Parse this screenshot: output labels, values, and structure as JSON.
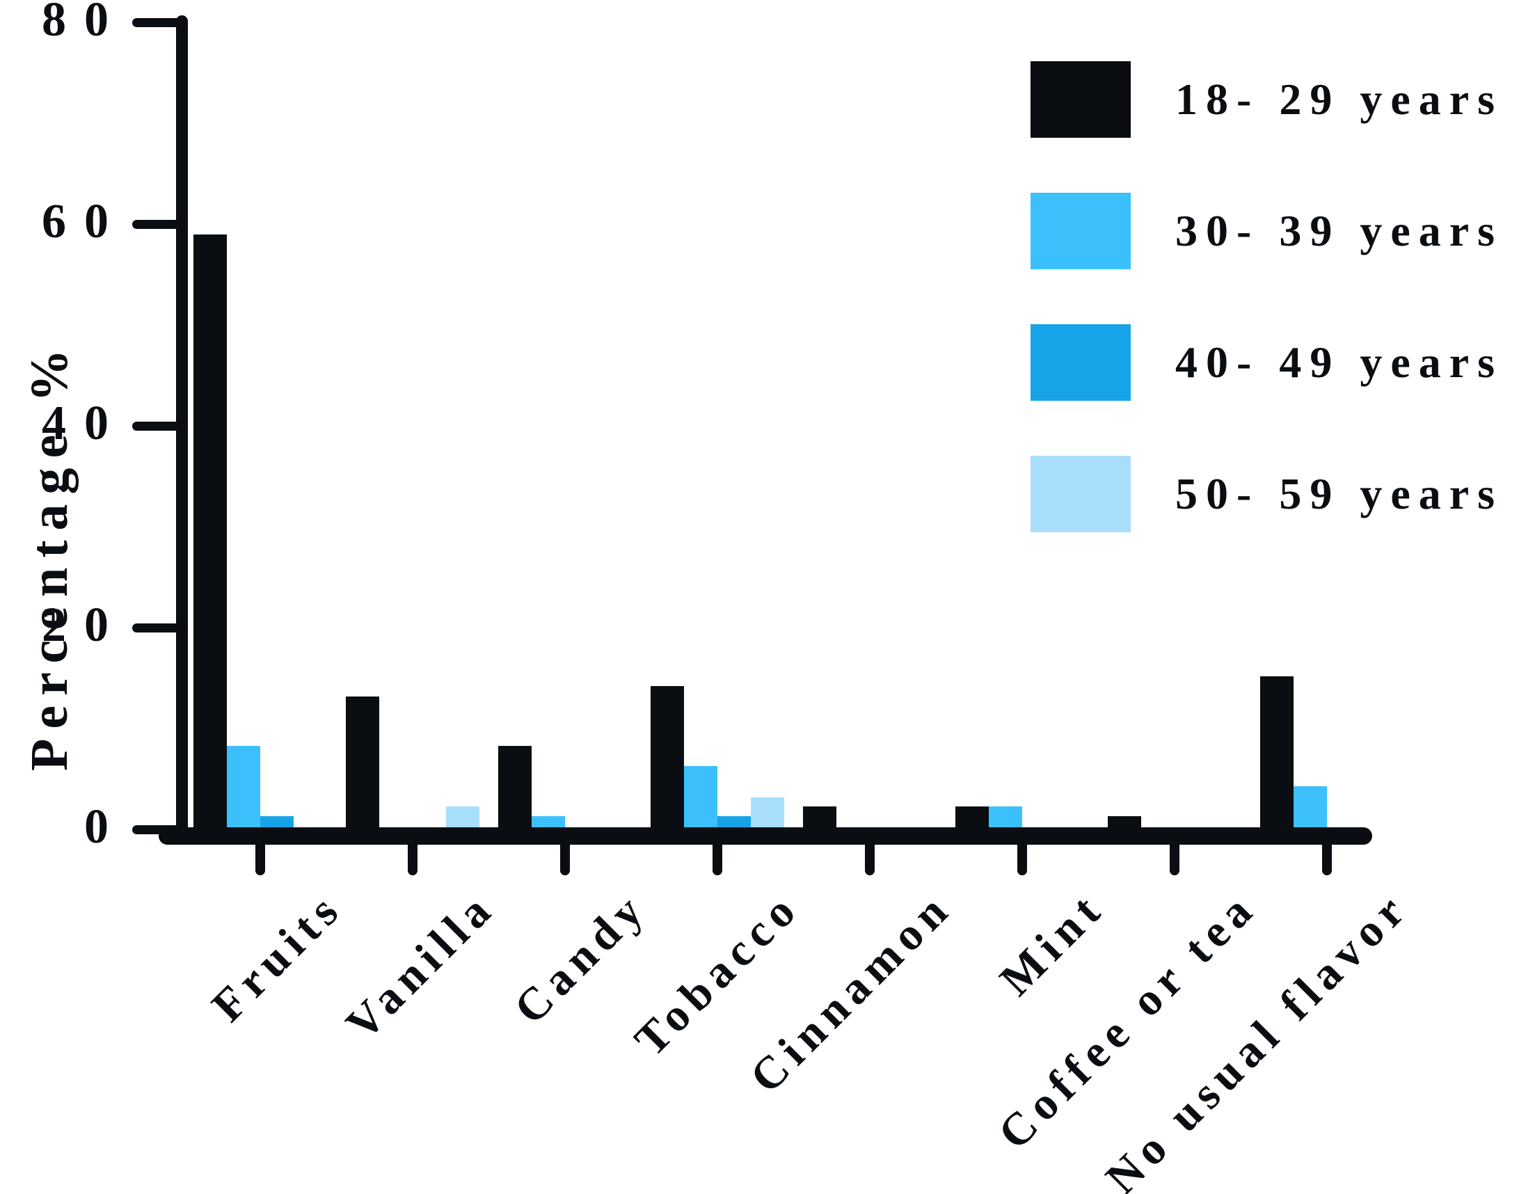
{
  "chart_data": {
    "type": "bar",
    "title": "",
    "xlabel": "",
    "ylabel": "Percentage %",
    "ylim": [
      0,
      80
    ],
    "yticks": [
      0,
      20,
      40,
      60,
      80
    ],
    "grid": false,
    "legend_position": "top-right",
    "categories": [
      "Fruits",
      "Vanilla",
      "Candy",
      "Tobacco",
      "Cinnamon",
      "Mint",
      "Coffee or tea",
      "No usual flavor"
    ],
    "series": [
      {
        "name": "18- 29 years",
        "color": "#0a0d11",
        "values": [
          59.0,
          13.2,
          8.3,
          14.2,
          2.3,
          2.3,
          1.3,
          15.2
        ]
      },
      {
        "name": "30- 39 years",
        "color": "#3cc0fb",
        "values": [
          8.3,
          0,
          1.3,
          6.3,
          0,
          2.3,
          0,
          4.3
        ]
      },
      {
        "name": "40- 49 years",
        "color": "#17a3e8",
        "values": [
          1.3,
          0,
          0,
          1.3,
          0,
          0,
          0,
          0
        ]
      },
      {
        "name": "50- 59 years",
        "color": "#a9defc",
        "values": [
          0,
          2.3,
          0,
          3.2,
          0,
          0,
          0,
          0
        ]
      }
    ]
  }
}
